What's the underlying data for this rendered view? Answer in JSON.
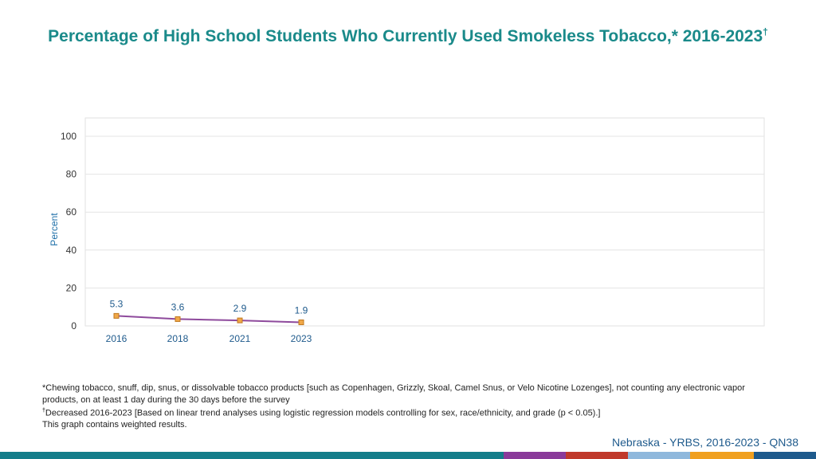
{
  "title": "Percentage of High School Students Who Currently Used Smokeless Tobacco,* 2016-2023",
  "title_mark": "†",
  "footnotes": {
    "line1": "*Chewing tobacco, snuff, dip, snus, or dissolvable tobacco products [such as Copenhagen, Grizzly, Skoal, Camel Snus, or Velo Nicotine Lozenges], not counting any electronic vapor products, on at least 1 day during the 30 days before the survey",
    "line2_mark": "†",
    "line2": "Decreased 2016-2023 [Based on linear trend analyses using logistic regression models controlling for sex, race/ethnicity, and grade (p < 0.05).]",
    "line3": "This graph contains weighted results."
  },
  "source": "Nebraska - YRBS, 2016-2023 - QN38",
  "colors": {
    "title": "#1a8a8a",
    "line": "#8e4a9c",
    "marker_fill": "#f0a848",
    "marker_stroke": "#c07820",
    "source": "#1e5a8c",
    "bottom_bar": [
      "#137d8a",
      "#8a3a9a",
      "#c0392b",
      "#8fb8dc",
      "#f0a020",
      "#1e5a8c"
    ]
  },
  "chart_data": {
    "type": "line",
    "x": [
      "2016",
      "2018",
      "2021",
      "2023"
    ],
    "series": [
      {
        "values": [
          5.3,
          3.6,
          2.9,
          1.9
        ],
        "labels": [
          "5.3",
          "3.6",
          "2.9",
          "1.9"
        ]
      }
    ],
    "ylabel": "Percent",
    "ylim": [
      0,
      100
    ],
    "yticks": [
      "0",
      "20",
      "40",
      "60",
      "80",
      "100"
    ],
    "grid": true,
    "legend": "none"
  }
}
